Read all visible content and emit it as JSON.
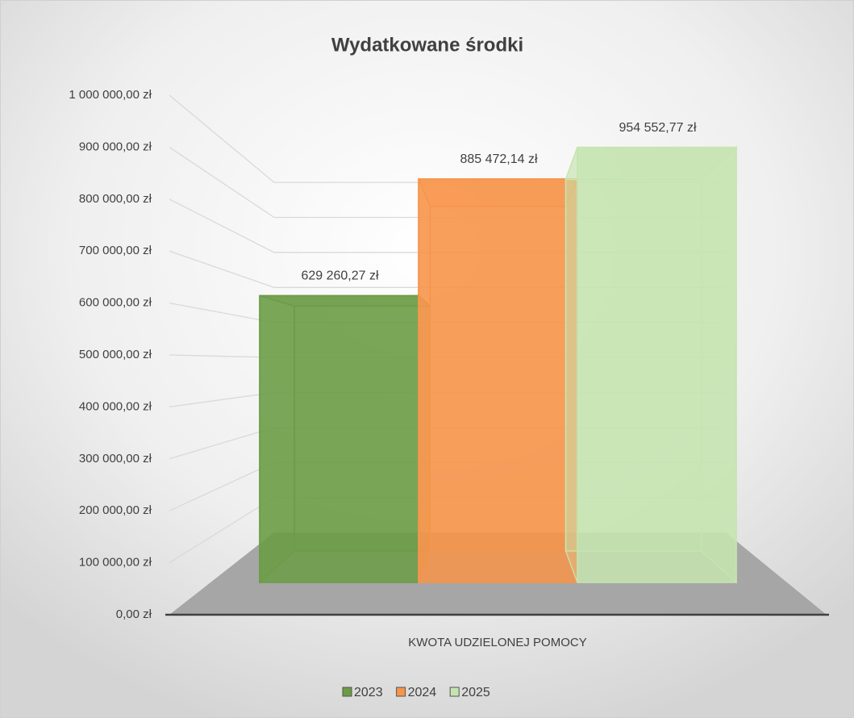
{
  "chart_data": {
    "type": "bar3d",
    "title": "Wydatkowane środki",
    "categories": [
      "KWOTA UDZIELONEJ POMOCY"
    ],
    "series": [
      {
        "name": "2023",
        "color": "#6b9c45",
        "values": [
          629260.27
        ],
        "value_labels": [
          "629 260,27 zł"
        ]
      },
      {
        "name": "2024",
        "color": "#f7944a",
        "values": [
          885472.14
        ],
        "value_labels": [
          "885 472,14 zł"
        ]
      },
      {
        "name": "2025",
        "color": "#c6e4b0",
        "values": [
          954552.77
        ],
        "value_labels": [
          "954 552,77 zł"
        ]
      }
    ],
    "ylim": [
      0,
      1000000
    ],
    "yticks": [
      {
        "value": 0,
        "label": "0,00 zł"
      },
      {
        "value": 100000,
        "label": "100 000,00 zł"
      },
      {
        "value": 200000,
        "label": "200 000,00 zł"
      },
      {
        "value": 300000,
        "label": "300 000,00 zł"
      },
      {
        "value": 400000,
        "label": "400 000,00 zł"
      },
      {
        "value": 500000,
        "label": "500 000,00 zł"
      },
      {
        "value": 600000,
        "label": "600 000,00 zł"
      },
      {
        "value": 700000,
        "label": "700 000,00 zł"
      },
      {
        "value": 800000,
        "label": "800 000,00 zł"
      },
      {
        "value": 900000,
        "label": "900 000,00 zł"
      },
      {
        "value": 1000000,
        "label": "1 000 000,00 zł"
      }
    ],
    "grid": true,
    "legend": "bottom"
  }
}
